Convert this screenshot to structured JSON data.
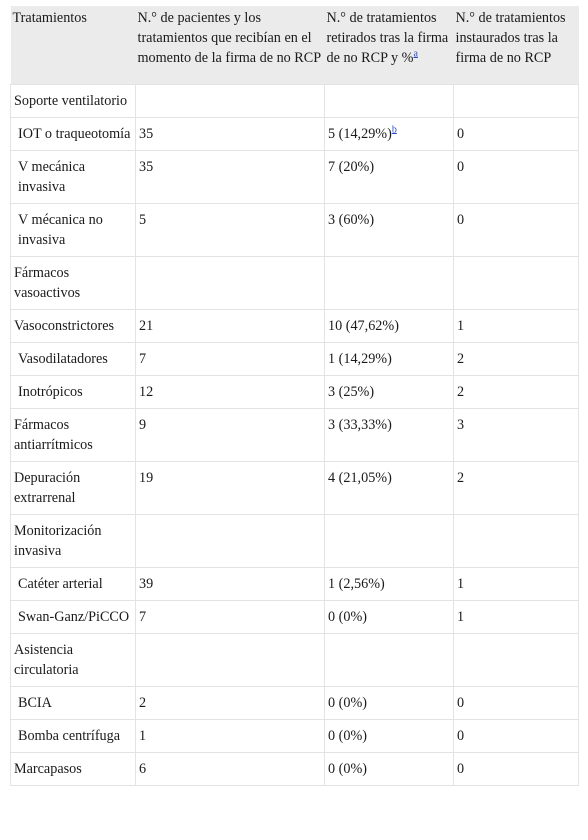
{
  "header": {
    "col1": "Tratamientos",
    "col2": "N.° de pacientes y los tratamientos que recibían en el momento de la firma de no RCP",
    "col3": "N.° de tratamientos retirados tras la firma de no RCP y %",
    "col3_ref": "a",
    "col4": "N.° de tratamientos instaurados tras la firma de no RCP"
  },
  "rows": [
    {
      "label": "Soporte ventilatorio",
      "patients": "",
      "withdrawn": "",
      "started": ""
    },
    {
      "label": "IOT o traqueotomía",
      "patients": "35",
      "withdrawn": "5 (14,29%)",
      "withdrawn_ref": "b",
      "started": "0"
    },
    {
      "label": "V mecánica invasiva",
      "patients": "35",
      "withdrawn": "7 (20%)",
      "started": "0"
    },
    {
      "label": "V mécanica no invasiva",
      "patients": "5",
      "withdrawn": "3 (60%)",
      "started": "0"
    },
    {
      "label": "Fármacos vasoactivos",
      "patients": "",
      "withdrawn": "",
      "started": ""
    },
    {
      "label": "Vasoconstrictores",
      "patients": "21",
      "withdrawn": "10 (47,62%)",
      "started": "1"
    },
    {
      "label": "Vasodilatadores",
      "patients": "7",
      "withdrawn": "1 (14,29%)",
      "started": "2"
    },
    {
      "label": "Inotrópicos",
      "patients": "12",
      "withdrawn": "3 (25%)",
      "started": "2"
    },
    {
      "label": "Fármacos antiarrítmicos",
      "patients": "9",
      "withdrawn": "3 (33,33%)",
      "started": "3"
    },
    {
      "label": "Depuración extrarrenal",
      "patients": "19",
      "withdrawn": "4 (21,05%)",
      "started": "2"
    },
    {
      "label": "Monitorización invasiva",
      "patients": "",
      "withdrawn": "",
      "started": ""
    },
    {
      "label": "Catéter arterial",
      "patients": "39",
      "withdrawn": "1 (2,56%)",
      "started": "1"
    },
    {
      "label": "Swan-Ganz/PiCCO",
      "patients": "7",
      "withdrawn": "0 (0%)",
      "started": "1"
    },
    {
      "label": "Asistencia circulatoria",
      "patients": "",
      "withdrawn": "",
      "started": ""
    },
    {
      "label": "BCIA",
      "patients": "2",
      "withdrawn": "0 (0%)",
      "started": "0"
    },
    {
      "label": "Bomba centrífuga",
      "patients": "1",
      "withdrawn": "0 (0%)",
      "started": "0"
    },
    {
      "label": "Marcapasos",
      "patients": "6",
      "withdrawn": "0 (0%)",
      "started": "0"
    }
  ]
}
